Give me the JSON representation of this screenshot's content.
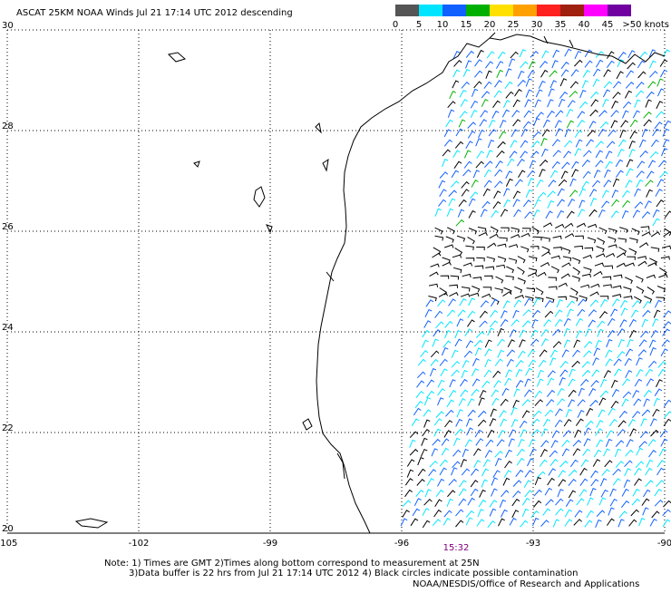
{
  "map": {
    "title": "ASCAT 25KM NOAA Winds  Jul 21 17:14 UTC 2012 descending",
    "xlim": [
      -105,
      -90
    ],
    "ylim": [
      20,
      30
    ],
    "xticks": [
      -105,
      -102,
      -99,
      -96,
      -93,
      -90
    ],
    "yticks": [
      20,
      22,
      24,
      26,
      28,
      30
    ],
    "grid": true,
    "colorbar": {
      "ticks": [
        0,
        5,
        10,
        15,
        20,
        25,
        30,
        35,
        40,
        45
      ],
      "end_label": ">50 knots",
      "colors": [
        "#555555",
        "#00e5ff",
        "#1060ff",
        "#00b000",
        "#ffe000",
        "#ffa000",
        "#ff2020",
        "#a02010",
        "#ff00ff",
        "#7000a0"
      ]
    },
    "time_label": "15:32",
    "notes": [
      "Note: 1) Times are GMT 2)Times along bottom correspond to measurement at 25N",
      "3)Data buffer is 22 hrs from Jul 21 17:14 UTC 2012 4) Black circles indicate possible contamination",
      "NOAA/NESDIS/Office of Research and Applications"
    ]
  }
}
